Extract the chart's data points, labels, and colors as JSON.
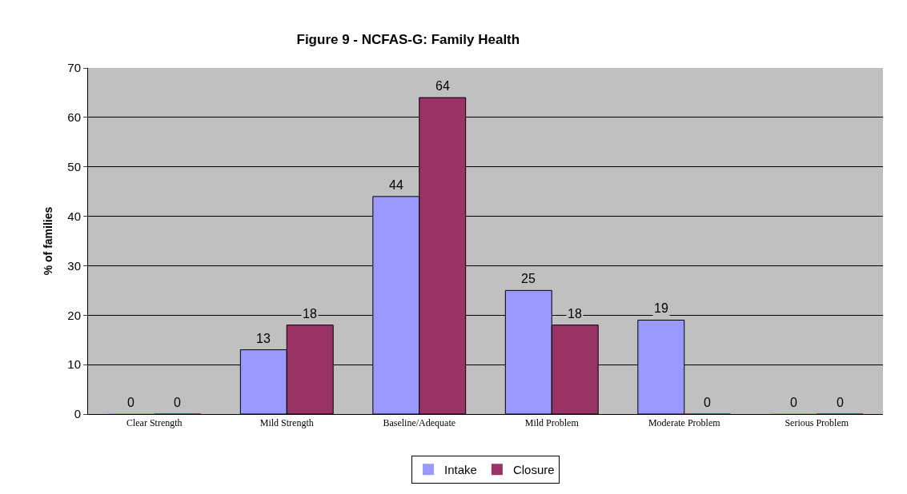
{
  "chart_data": {
    "type": "bar",
    "title": "Figure 9 - NCFAS-G: Family Health",
    "ylabel": "% of families",
    "categories": [
      "Clear Strength",
      "Mild Strength",
      "Baseline/Adequate",
      "Mild Problem",
      "Moderate Problem",
      "Serious Problem"
    ],
    "series": [
      {
        "name": "Intake",
        "color": "#9999ff",
        "values": [
          0,
          13,
          44,
          25,
          19,
          0
        ]
      },
      {
        "name": "Closure",
        "color": "#993366",
        "values": [
          0,
          18,
          64,
          18,
          0,
          0
        ]
      }
    ],
    "ylim": [
      0,
      70
    ],
    "yticks": [
      0,
      10,
      20,
      30,
      40,
      50,
      60,
      70
    ],
    "grid": "y",
    "data_labels": true,
    "legend": "bottom"
  }
}
